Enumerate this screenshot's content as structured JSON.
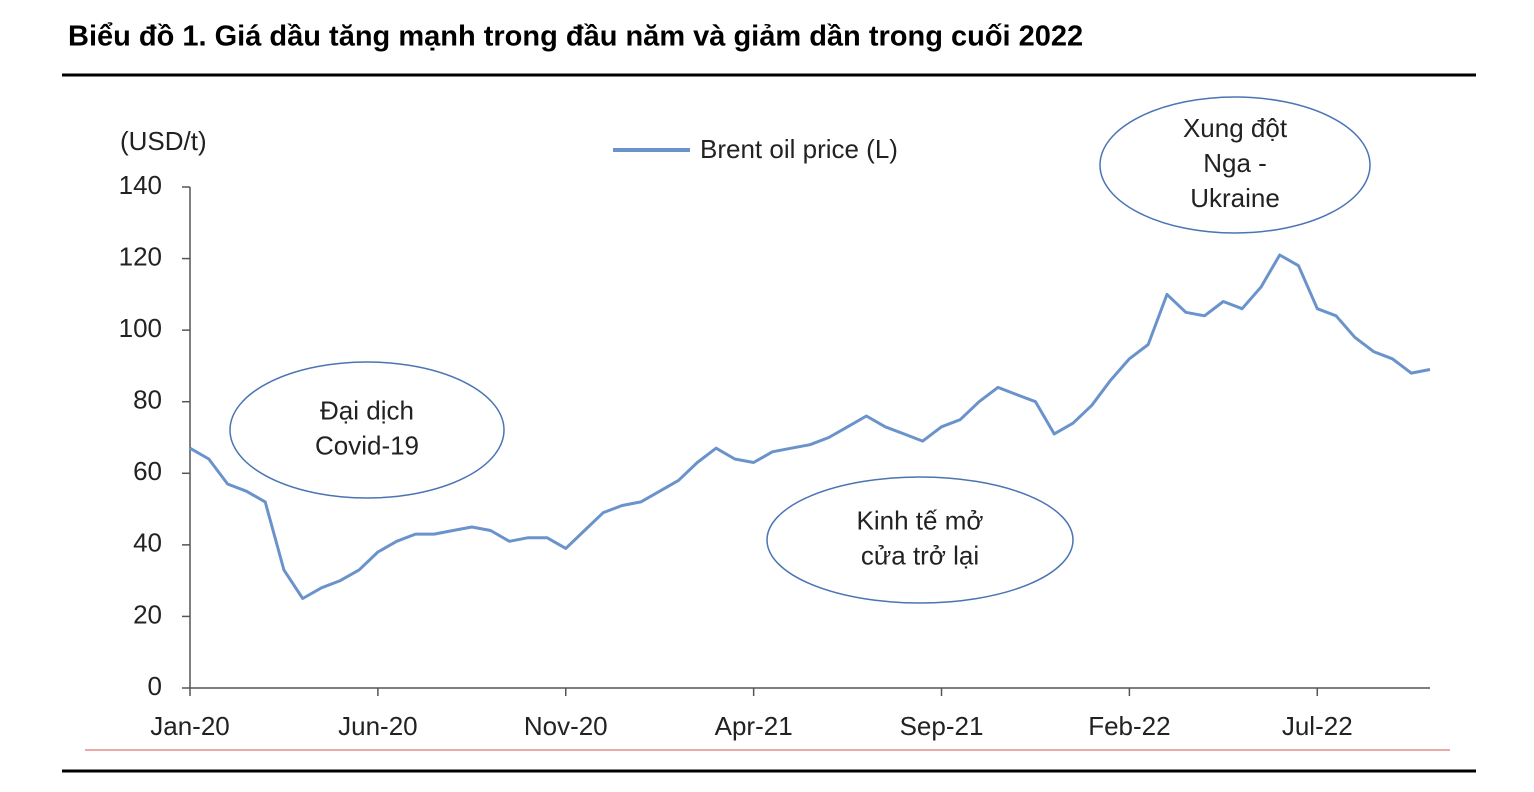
{
  "chart_data": {
    "type": "line",
    "title": "Biểu đồ 1. Giá dầu tăng mạnh trong đầu năm và giảm dần trong cuối 2022",
    "y_label": "(USD/t)",
    "categories": [
      "Jan-20",
      null,
      null,
      null,
      null,
      null,
      null,
      null,
      null,
      null,
      "Jun-20",
      null,
      null,
      null,
      null,
      null,
      null,
      null,
      null,
      null,
      "Nov-20",
      null,
      null,
      null,
      null,
      null,
      null,
      null,
      null,
      null,
      "Apr-21",
      null,
      null,
      null,
      null,
      null,
      null,
      null,
      null,
      null,
      "Sep-21",
      null,
      null,
      null,
      null,
      null,
      null,
      null,
      null,
      null,
      "Feb-22",
      null,
      null,
      null,
      null,
      null,
      null,
      null,
      null,
      null,
      "Jul-22",
      null,
      null,
      null,
      null,
      null,
      null
    ],
    "series": [
      {
        "name": "Brent oil price (L)",
        "color": "#6a93cb",
        "values": [
          67,
          64,
          57,
          55,
          52,
          33,
          25,
          28,
          30,
          33,
          38,
          41,
          43,
          43,
          44,
          45,
          44,
          41,
          42,
          42,
          39,
          44,
          49,
          51,
          52,
          55,
          58,
          63,
          67,
          64,
          63,
          66,
          67,
          68,
          70,
          73,
          76,
          73,
          71,
          69,
          73,
          75,
          80,
          84,
          82,
          80,
          71,
          74,
          79,
          86,
          92,
          96,
          110,
          105,
          104,
          108,
          106,
          112,
          121,
          118,
          106,
          104,
          98,
          94,
          92,
          88,
          89
        ]
      }
    ],
    "ylim": [
      0,
      140
    ],
    "yticks": [
      0,
      20,
      40,
      60,
      80,
      100,
      120,
      140
    ],
    "grid": false,
    "annotations": [
      [
        "Đại dịch",
        "Covid-19"
      ],
      [
        "Kinh tế mở",
        "cửa trở lại"
      ],
      [
        "Xung đột",
        "Nga -",
        "Ukraine"
      ]
    ]
  }
}
